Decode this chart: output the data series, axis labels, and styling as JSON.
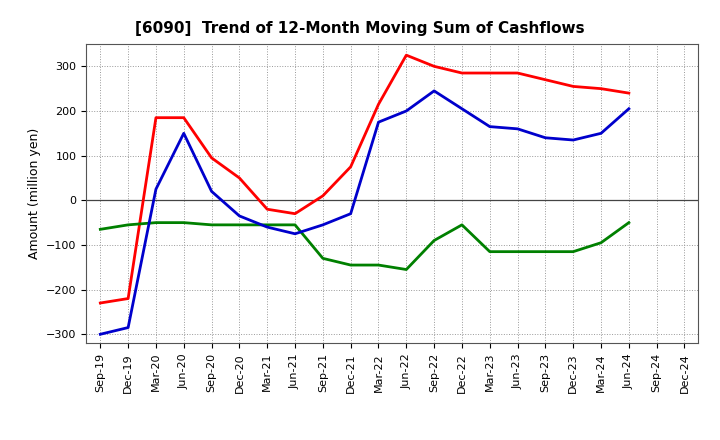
{
  "title": "[6090]  Trend of 12-Month Moving Sum of Cashflows",
  "ylabel": "Amount (million yen)",
  "background_color": "#ffffff",
  "plot_background_color": "#ffffff",
  "grid_color": "#999999",
  "x_labels": [
    "Sep-19",
    "Dec-19",
    "Mar-20",
    "Jun-20",
    "Sep-20",
    "Dec-20",
    "Mar-21",
    "Jun-21",
    "Sep-21",
    "Dec-21",
    "Mar-22",
    "Jun-22",
    "Sep-22",
    "Dec-22",
    "Mar-23",
    "Jun-23",
    "Sep-23",
    "Dec-23",
    "Mar-24",
    "Jun-24",
    "Sep-24",
    "Dec-24"
  ],
  "operating_cashflow": [
    -230,
    -220,
    185,
    185,
    95,
    50,
    -20,
    -30,
    10,
    75,
    215,
    325,
    300,
    285,
    285,
    285,
    270,
    255,
    250,
    240,
    null,
    null
  ],
  "investing_cashflow": [
    -65,
    -55,
    -50,
    -50,
    -55,
    -55,
    -55,
    -55,
    -130,
    -145,
    -145,
    -155,
    -90,
    -55,
    -115,
    -115,
    -115,
    -115,
    -95,
    -50,
    null,
    null
  ],
  "free_cashflow": [
    -300,
    -285,
    25,
    150,
    20,
    -35,
    -60,
    -75,
    -55,
    -30,
    175,
    200,
    245,
    205,
    165,
    160,
    140,
    135,
    150,
    205,
    null,
    null
  ],
  "operating_color": "#ff0000",
  "investing_color": "#008000",
  "free_color": "#0000cc",
  "ylim": [
    -320,
    350
  ],
  "yticks": [
    -300,
    -200,
    -100,
    0,
    100,
    200,
    300
  ],
  "line_width": 2.0,
  "title_fontsize": 11,
  "legend_fontsize": 9,
  "tick_fontsize": 8,
  "ylabel_fontsize": 9
}
